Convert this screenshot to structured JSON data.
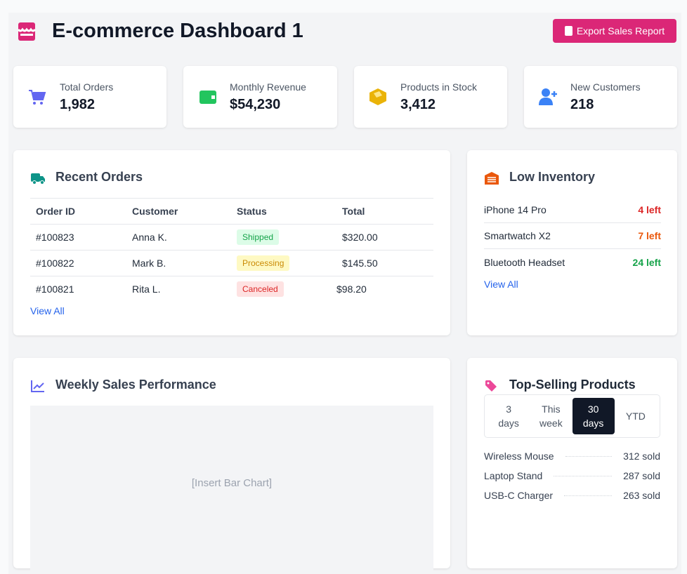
{
  "header": {
    "title": "E-commerce Dashboard 1",
    "export_label": "Export Sales Report"
  },
  "stats": [
    {
      "label": "Total Orders",
      "value": "1,982",
      "icon": "cart-icon",
      "color": "#6366f1"
    },
    {
      "label": "Monthly Revenue",
      "value": "$54,230",
      "icon": "wallet-icon",
      "color": "#22c55e"
    },
    {
      "label": "Products in Stock",
      "value": "3,412",
      "icon": "box-icon",
      "color": "#eab308"
    },
    {
      "label": "New Customers",
      "value": "218",
      "icon": "user-plus-icon",
      "color": "#3b82f6"
    }
  ],
  "orders": {
    "title": "Recent Orders",
    "columns": [
      "Order ID",
      "Customer",
      "Status",
      "Total"
    ],
    "rows": [
      {
        "id": "#100823",
        "customer": "Anna K.",
        "status": "Shipped",
        "total": "$320.00"
      },
      {
        "id": "#100822",
        "customer": "Mark B.",
        "status": "Processing",
        "total": "$145.50"
      },
      {
        "id": "#100821",
        "customer": "Rita L.",
        "status": "Canceled",
        "total": "$98.20"
      }
    ],
    "view_all": "View All"
  },
  "inventory": {
    "title": "Low Inventory",
    "items": [
      {
        "name": "iPhone 14 Pro",
        "left": "4 left",
        "color": "#dc2626"
      },
      {
        "name": "Smartwatch X2",
        "left": "7 left",
        "color": "#ea580c"
      },
      {
        "name": "Bluetooth Headset",
        "left": "24 left",
        "color": "#16a34a"
      }
    ],
    "view_all": "View All"
  },
  "weekly": {
    "title": "Weekly Sales Performance",
    "placeholder": "[Insert Bar Chart]"
  },
  "top": {
    "title": "Top-Selling Products",
    "ranges": [
      {
        "l1": "3",
        "l2": "days"
      },
      {
        "l1": "This",
        "l2": "week"
      },
      {
        "l1": "30",
        "l2": "days"
      },
      {
        "l1": "YTD",
        "l2": ""
      }
    ],
    "selected": "30 days",
    "items": [
      {
        "name": "Wireless Mouse",
        "sold": "312 sold"
      },
      {
        "name": "Laptop Stand",
        "sold": "287 sold"
      },
      {
        "name": "USB-C Charger",
        "sold": "263 sold"
      }
    ]
  }
}
